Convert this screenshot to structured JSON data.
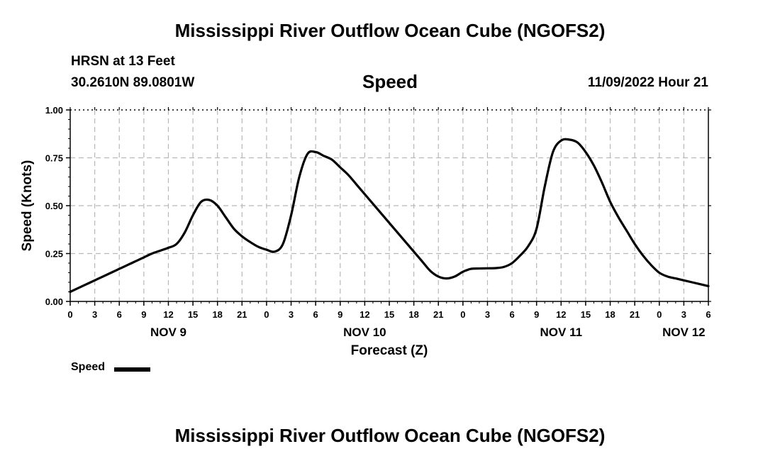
{
  "header": {
    "title": "Mississippi River Outflow Ocean Cube (NGOFS2)",
    "station": "HRSN at 13 Feet",
    "coords": "30.2610N  89.0801W",
    "variable": "Speed",
    "datetime": "11/09/2022 Hour 21"
  },
  "footer": {
    "title": "Mississippi River Outflow Ocean Cube (NGOFS2)"
  },
  "legend": {
    "label": "Speed"
  },
  "chart_data": {
    "type": "line",
    "title": "Speed",
    "xlabel": "Forecast (Z)",
    "ylabel": "Speed (Knots)",
    "ylim": [
      0,
      1.0
    ],
    "yticks": [
      0,
      0.25,
      0.5,
      0.75,
      1.0
    ],
    "ytick_labels": [
      "0.00",
      "0.25",
      "0.50",
      "0.75",
      "1.00"
    ],
    "xlim": [
      0,
      78
    ],
    "xtick_labels": [
      "0",
      "3",
      "6",
      "9",
      "12",
      "15",
      "18",
      "21",
      "0",
      "3",
      "6",
      "9",
      "12",
      "15",
      "18",
      "21",
      "0",
      "3",
      "6",
      "9",
      "12",
      "15",
      "18",
      "21",
      "0",
      "3",
      "6"
    ],
    "day_labels": [
      {
        "label": "NOV 9",
        "x": 12
      },
      {
        "label": "NOV 10",
        "x": 36
      },
      {
        "label": "NOV 11",
        "x": 60
      },
      {
        "label": "NOV 12",
        "x": 75
      }
    ],
    "grid": true,
    "series": [
      {
        "name": "Speed",
        "color": "#000000",
        "x": [
          0,
          1,
          2,
          3,
          4,
          5,
          6,
          7,
          8,
          9,
          10,
          11,
          12,
          13,
          14,
          15,
          16,
          17,
          18,
          19,
          20,
          21,
          22,
          23,
          24,
          25,
          26,
          27,
          28,
          29,
          30,
          31,
          32,
          33,
          34,
          35,
          36,
          37,
          38,
          39,
          40,
          41,
          42,
          43,
          44,
          45,
          46,
          47,
          48,
          49,
          50,
          51,
          52,
          53,
          54,
          55,
          56,
          57,
          58,
          59,
          60,
          61,
          62,
          63,
          64,
          65,
          66,
          67,
          68,
          69,
          70,
          71,
          72,
          73,
          74,
          75,
          76,
          77,
          78
        ],
        "values": [
          0.05,
          0.07,
          0.09,
          0.11,
          0.13,
          0.15,
          0.17,
          0.19,
          0.21,
          0.23,
          0.25,
          0.265,
          0.28,
          0.3,
          0.36,
          0.45,
          0.52,
          0.53,
          0.5,
          0.44,
          0.38,
          0.34,
          0.31,
          0.285,
          0.27,
          0.26,
          0.3,
          0.45,
          0.65,
          0.77,
          0.78,
          0.76,
          0.74,
          0.7,
          0.66,
          0.61,
          0.56,
          0.51,
          0.46,
          0.41,
          0.36,
          0.31,
          0.26,
          0.21,
          0.16,
          0.13,
          0.12,
          0.13,
          0.155,
          0.17,
          0.172,
          0.173,
          0.174,
          0.18,
          0.2,
          0.24,
          0.29,
          0.38,
          0.6,
          0.78,
          0.84,
          0.845,
          0.83,
          0.78,
          0.71,
          0.62,
          0.52,
          0.44,
          0.37,
          0.3,
          0.24,
          0.19,
          0.15,
          0.13,
          0.12,
          0.11,
          0.1,
          0.09,
          0.08
        ]
      }
    ]
  }
}
